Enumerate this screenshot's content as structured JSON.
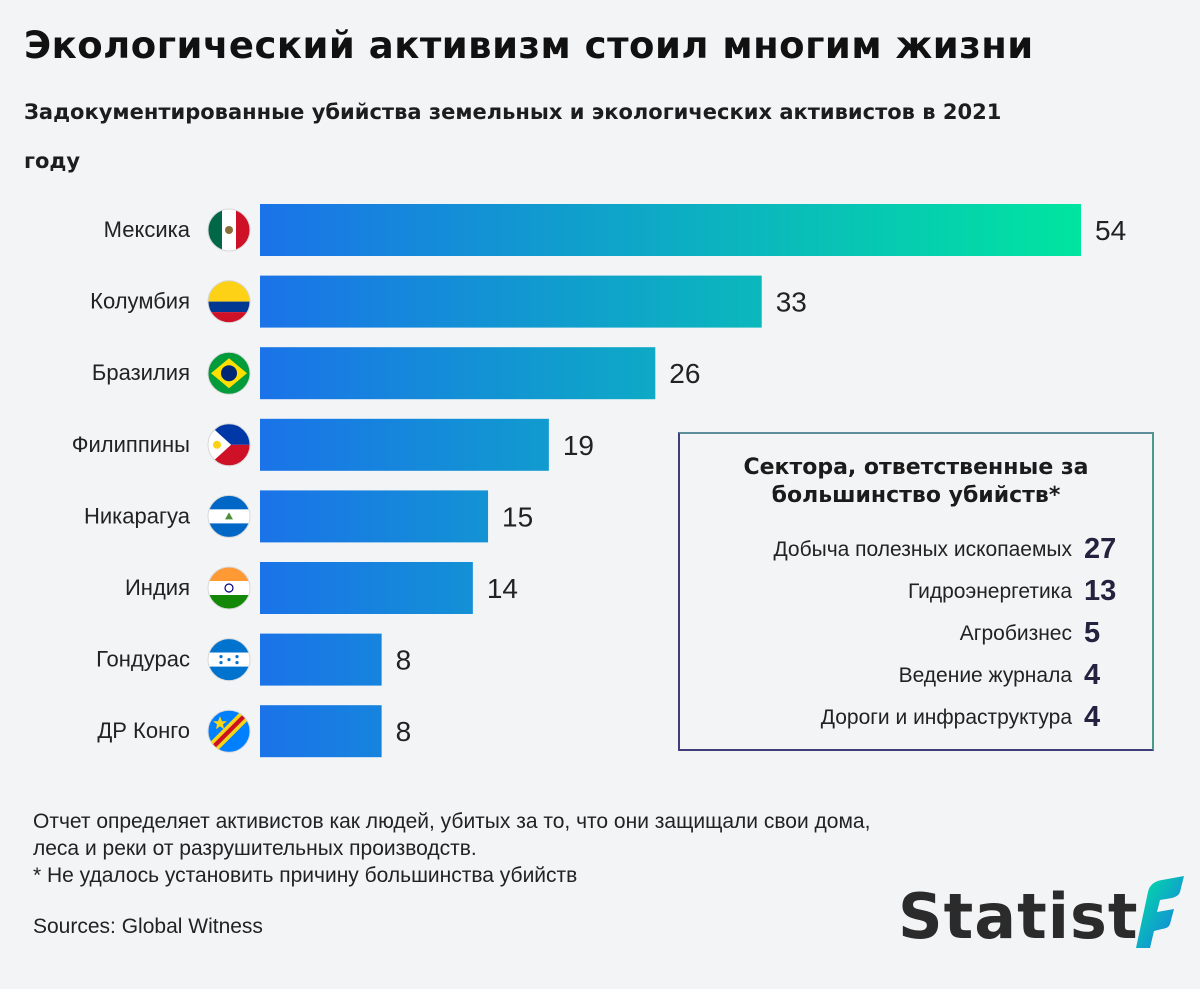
{
  "header": {
    "title": "Экологический активизм стоил многим жизни",
    "subtitle": "Задокументированные убийства земельных и экологических активистов в 2021 году"
  },
  "chart_data": {
    "type": "bar",
    "orientation": "horizontal",
    "categories": [
      "Мексика",
      "Колумбия",
      "Бразилия",
      "Филиппины",
      "Никарагуа",
      "Индия",
      "Гондурас",
      "ДР Конго"
    ],
    "values": [
      54,
      33,
      26,
      19,
      15,
      14,
      8,
      8
    ],
    "flags": [
      "mexico-flag-icon",
      "colombia-flag-icon",
      "brazil-flag-icon",
      "philippines-flag-icon",
      "nicaragua-flag-icon",
      "india-flag-icon",
      "honduras-flag-icon",
      "dr-congo-flag-icon"
    ],
    "xlim": [
      0,
      54
    ],
    "grid": false,
    "colors": {
      "bar_start": "#1a73e8",
      "bar_end": "#00e5a0"
    }
  },
  "inset": {
    "title": "Сектора, ответственные за большинство убийств*",
    "sectors": [
      {
        "name": "Добыча полезных ископаемых",
        "value": "27"
      },
      {
        "name": "Гидроэнергетика",
        "value": "13"
      },
      {
        "name": "Агробизнес",
        "value": "5"
      },
      {
        "name": "Ведение журнала",
        "value": "4"
      },
      {
        "name": "Дороги и инфраструктура",
        "value": "4"
      }
    ]
  },
  "footer": {
    "note_line1": "Отчет определяет активистов как людей, убитых за то, что они защищали свои дома,",
    "note_line2": "леса и реки от разрушительных производств.",
    "note_line3": "* Не удалось установить причину большинства убийств",
    "sources": "Sources: Global Witness",
    "logo_text": "Statist"
  }
}
